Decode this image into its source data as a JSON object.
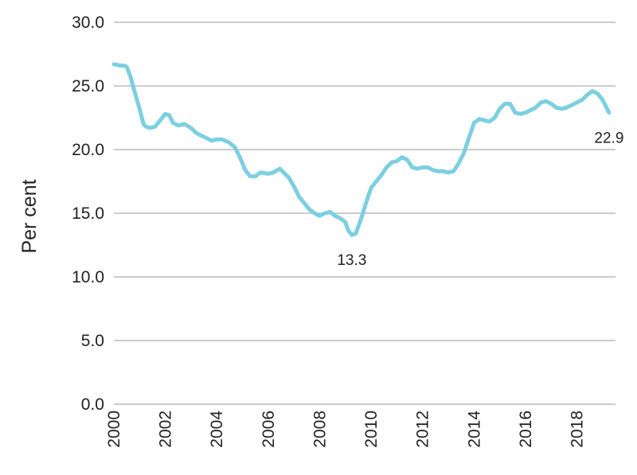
{
  "chart_data": {
    "type": "line",
    "ylabel": "Per cent",
    "ylim": [
      0,
      30
    ],
    "xlim": [
      2000,
      2019.5
    ],
    "grid": "horizontal",
    "legend": "none",
    "y_ticks": [
      "0.0",
      "5.0",
      "10.0",
      "15.0",
      "20.0",
      "25.0",
      "30.0"
    ],
    "x_ticks": [
      "2000",
      "2002",
      "2004",
      "2006",
      "2008",
      "2010",
      "2012",
      "2014",
      "2016",
      "2018"
    ],
    "line_color": "#7ccfe0",
    "series": [
      {
        "x": [
          2000.0,
          2000.25,
          2000.4,
          2000.5,
          2000.65,
          2000.8,
          2001.0,
          2001.15,
          2001.25,
          2001.4,
          2001.6,
          2001.8,
          2002.0,
          2002.15,
          2002.3,
          2002.5,
          2002.75,
          2003.0,
          2003.2,
          2003.4,
          2003.6,
          2003.8,
          2004.0,
          2004.2,
          2004.45,
          2004.7,
          2004.9,
          2005.1,
          2005.3,
          2005.5,
          2005.7,
          2006.0,
          2006.2,
          2006.45,
          2006.65,
          2006.8,
          2007.0,
          2007.2,
          2007.4,
          2007.6,
          2007.8,
          2008.0,
          2008.2,
          2008.4,
          2008.6,
          2008.8,
          2009.0,
          2009.1,
          2009.25,
          2009.4,
          2009.6,
          2009.8,
          2010.0,
          2010.2,
          2010.4,
          2010.6,
          2010.8,
          2011.0,
          2011.2,
          2011.4,
          2011.6,
          2011.8,
          2012.0,
          2012.2,
          2012.4,
          2012.6,
          2012.8,
          2013.0,
          2013.2,
          2013.4,
          2013.6,
          2013.8,
          2014.0,
          2014.2,
          2014.4,
          2014.6,
          2014.8,
          2015.0,
          2015.2,
          2015.4,
          2015.6,
          2015.8,
          2016.0,
          2016.2,
          2016.4,
          2016.6,
          2016.8,
          2017.0,
          2017.2,
          2017.4,
          2017.6,
          2017.8,
          2018.0,
          2018.2,
          2018.4,
          2018.6,
          2018.8,
          2019.0,
          2019.25
        ],
        "y": [
          26.7,
          26.6,
          26.6,
          26.5,
          25.7,
          24.6,
          23.2,
          22.0,
          21.8,
          21.7,
          21.8,
          22.3,
          22.8,
          22.7,
          22.1,
          21.9,
          22.0,
          21.7,
          21.3,
          21.1,
          20.9,
          20.7,
          20.8,
          20.8,
          20.6,
          20.2,
          19.4,
          18.4,
          17.9,
          17.9,
          18.2,
          18.1,
          18.2,
          18.5,
          18.1,
          17.8,
          17.1,
          16.3,
          15.8,
          15.3,
          15.0,
          14.8,
          15.0,
          15.1,
          14.8,
          14.6,
          14.3,
          13.7,
          13.3,
          13.4,
          14.5,
          15.8,
          17.0,
          17.5,
          18.0,
          18.6,
          19.0,
          19.1,
          19.4,
          19.2,
          18.6,
          18.5,
          18.6,
          18.6,
          18.4,
          18.3,
          18.3,
          18.2,
          18.3,
          18.9,
          19.7,
          20.9,
          22.1,
          22.4,
          22.3,
          22.2,
          22.5,
          23.2,
          23.6,
          23.6,
          22.9,
          22.8,
          22.9,
          23.1,
          23.3,
          23.7,
          23.8,
          23.6,
          23.3,
          23.2,
          23.3,
          23.5,
          23.7,
          23.9,
          24.3,
          24.6,
          24.4,
          23.9,
          22.9
        ]
      }
    ],
    "annotations": [
      {
        "x": 2009.25,
        "y": 13.3,
        "text": "13.3"
      },
      {
        "x": 2019.25,
        "y": 22.9,
        "text": "22.9"
      }
    ]
  }
}
